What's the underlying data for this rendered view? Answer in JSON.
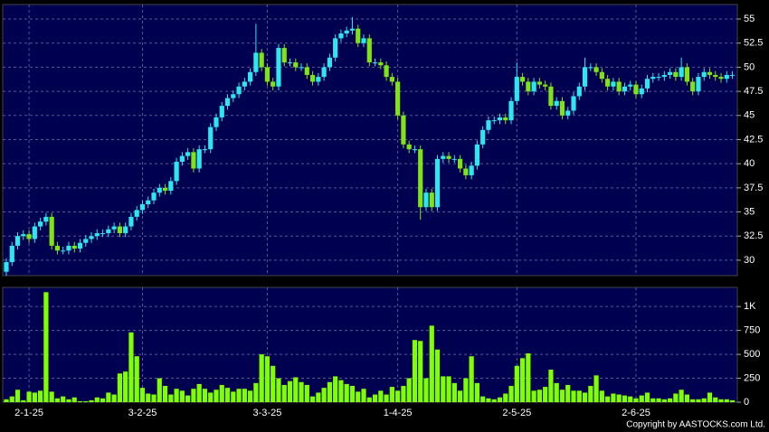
{
  "chart_data": [
    {
      "type": "candlestick",
      "up_color": "#2ee6f0",
      "down_color": "#7fe317",
      "grid": true,
      "open": [
        28.8,
        29.8,
        31.5,
        32.5,
        32.7,
        32.2,
        33.5,
        34,
        34.5,
        31.5,
        31,
        31,
        31.5,
        31.2,
        31.8,
        32.2,
        32.5,
        32.8,
        32.8,
        33.2,
        33.5,
        32.8,
        33.5,
        34.5,
        35.2,
        35.8,
        36.2,
        37,
        37.5,
        37.2,
        38.2,
        40.2,
        40.8,
        41.2,
        39.5,
        41.5,
        41.5,
        43.8,
        44.8,
        46,
        46.8,
        47.2,
        48,
        48.5,
        49.5,
        51.5,
        50,
        48.5,
        48,
        52,
        50.5,
        50.5,
        50,
        50,
        49.2,
        48.5,
        49,
        50,
        51,
        53,
        53.5,
        53.8,
        54,
        52.5,
        53,
        50.5,
        50.5,
        50.2,
        49,
        48.5,
        45,
        42,
        41.5,
        41.5,
        35.5,
        37,
        35.5,
        40.5,
        40.8,
        40.5,
        40.5,
        39.5,
        38.8,
        39.8,
        42,
        43.5,
        44.5,
        44.5,
        44.8,
        44.5,
        46.5,
        49,
        48.5,
        47.5,
        48.5,
        48.2,
        48,
        46,
        46.5,
        45,
        45.5,
        47,
        48,
        50,
        50,
        49.5,
        48.8,
        48,
        48.5,
        47.5,
        48,
        48.2,
        47.2,
        47.8,
        48.8,
        49,
        49,
        49.2,
        49.5,
        49,
        50,
        48.5,
        47.5,
        49,
        49.5,
        49.2,
        49,
        48.8,
        49.2
      ],
      "high": [
        30.2,
        31.9,
        32.9,
        33.1,
        33.1,
        33.9,
        34.4,
        34.9,
        34.9,
        31.9,
        31.4,
        31.9,
        31.9,
        32.2,
        32.6,
        32.9,
        33.2,
        33.2,
        33.6,
        33.9,
        33.9,
        33.9,
        34.9,
        35.6,
        36.2,
        36.6,
        37.4,
        37.9,
        37.9,
        38.6,
        40.6,
        41.2,
        41.6,
        41.6,
        41.9,
        41.9,
        44.2,
        45.2,
        46.4,
        47.2,
        47.6,
        48.4,
        48.9,
        49.9,
        54.5,
        51.9,
        50.4,
        48.9,
        52.4,
        52.4,
        50.9,
        50.9,
        50.4,
        50.4,
        49.6,
        49.4,
        50.4,
        51.4,
        53.4,
        53.9,
        54.2,
        55.2,
        54.4,
        53.4,
        53.4,
        50.9,
        50.9,
        50.6,
        49.4,
        48.9,
        45.4,
        42.4,
        41.9,
        41.9,
        37.4,
        37.4,
        40.9,
        41.2,
        41.2,
        40.9,
        40.9,
        39.9,
        40.2,
        42.4,
        43.9,
        44.9,
        44.9,
        45.2,
        45.2,
        46.9,
        50.5,
        49.4,
        48.9,
        48.9,
        48.9,
        48.6,
        48.4,
        46.9,
        46.9,
        45.9,
        47.4,
        48.4,
        51,
        50.4,
        50.4,
        49.9,
        49.2,
        48.9,
        48.9,
        48.4,
        48.6,
        48.6,
        48.2,
        49.2,
        49.4,
        49.4,
        49.6,
        49.9,
        49.9,
        51,
        50.4,
        48.9,
        49.4,
        49.9,
        49.9,
        49.6,
        49.4,
        49.6,
        49.6
      ],
      "low": [
        28.4,
        29.4,
        31.1,
        32.1,
        31.8,
        31.8,
        33.1,
        33.6,
        31.1,
        30.6,
        30.6,
        30.6,
        30.8,
        30.8,
        31.4,
        31.8,
        32.1,
        32.4,
        32.4,
        32.8,
        32.4,
        32.4,
        33.1,
        34.1,
        34.8,
        35.4,
        35.8,
        36.6,
        36.8,
        36.8,
        37.8,
        39.8,
        40.4,
        39.1,
        39.1,
        41.1,
        41.1,
        43.4,
        44.4,
        45.6,
        46.4,
        46.8,
        47.6,
        48.1,
        49.1,
        49.6,
        48.1,
        47.6,
        47.6,
        50.1,
        50.1,
        49.6,
        49.6,
        48.8,
        48.1,
        48.1,
        48.6,
        49.6,
        50.6,
        52.6,
        53.1,
        53.4,
        52.1,
        52.1,
        50.1,
        50.1,
        49.8,
        48.6,
        48.1,
        44.6,
        41.6,
        41.1,
        41.1,
        34.2,
        35.1,
        35.1,
        35.1,
        40.1,
        40.1,
        40.1,
        39.1,
        38.4,
        38.4,
        39.4,
        41.6,
        43.1,
        44.1,
        44.1,
        44.1,
        44.1,
        46.1,
        48.1,
        47.1,
        47.1,
        47.8,
        47.6,
        45.6,
        45.6,
        44.6,
        44.6,
        45.1,
        46.6,
        47.6,
        49.6,
        49.1,
        48.4,
        47.6,
        47.6,
        47.1,
        47.1,
        47.6,
        46.8,
        46.8,
        47.4,
        48.4,
        48.6,
        48.6,
        48.8,
        48.6,
        48.6,
        48.1,
        47.1,
        47.1,
        48.6,
        48.8,
        48.6,
        48.4,
        48.4,
        48.8
      ],
      "close": [
        29.8,
        31.5,
        32.5,
        32.7,
        32.2,
        33.5,
        34,
        34.5,
        31.5,
        31,
        31,
        31.5,
        31.2,
        31.8,
        32.2,
        32.5,
        32.8,
        32.8,
        33.2,
        33.5,
        32.8,
        33.5,
        34.5,
        35.2,
        35.8,
        36.2,
        37,
        37.5,
        37.2,
        38.2,
        40.2,
        40.8,
        41.2,
        39.5,
        41.5,
        41.5,
        43.8,
        44.8,
        46,
        46.8,
        47.2,
        48,
        48.5,
        49.5,
        51.5,
        50,
        48.5,
        48,
        52,
        50.5,
        50.5,
        50,
        50,
        49.2,
        48.5,
        49,
        50,
        51,
        53,
        53.5,
        53.8,
        54,
        52.5,
        53,
        50.5,
        50.5,
        50.2,
        49,
        48.5,
        45,
        42,
        41.5,
        41.5,
        35.5,
        37,
        35.5,
        40.5,
        40.8,
        40.5,
        40.5,
        39.5,
        38.8,
        39.8,
        42,
        43.5,
        44.5,
        44.5,
        44.8,
        44.5,
        46.5,
        49,
        48.5,
        47.5,
        48.5,
        48.2,
        48,
        46,
        46.5,
        45,
        45.5,
        47,
        48,
        50,
        50,
        49.5,
        48.8,
        48,
        48.5,
        47.5,
        48,
        48.2,
        47.2,
        47.8,
        48.8,
        49,
        49,
        49.2,
        49.5,
        49,
        50,
        48.5,
        47.5,
        49,
        49.5,
        49.2,
        49,
        48.8,
        49.2,
        49.2
      ],
      "ylim": [
        28.4,
        56.5
      ],
      "yticks": [
        30,
        32.5,
        35,
        37.5,
        40,
        42.5,
        45,
        47.5,
        50,
        52.5,
        55
      ]
    },
    {
      "type": "bar",
      "color": "#80ff00",
      "grid": true,
      "categories": [
        null,
        null,
        null,
        null,
        "2-1-25",
        null,
        null,
        null,
        null,
        null,
        null,
        null,
        null,
        null,
        null,
        null,
        null,
        null,
        null,
        null,
        null,
        null,
        null,
        null,
        "3-2-25",
        null,
        null,
        null,
        null,
        null,
        null,
        null,
        null,
        null,
        null,
        null,
        null,
        null,
        null,
        null,
        null,
        null,
        null,
        null,
        null,
        null,
        "3-3-25",
        null,
        null,
        null,
        null,
        null,
        null,
        null,
        null,
        null,
        null,
        null,
        null,
        null,
        null,
        null,
        null,
        null,
        null,
        null,
        null,
        null,
        null,
        "1-4-25",
        null,
        null,
        null,
        null,
        null,
        null,
        null,
        null,
        null,
        null,
        null,
        null,
        null,
        null,
        null,
        null,
        null,
        null,
        null,
        null,
        "2-5-25",
        null,
        null,
        null,
        null,
        null,
        null,
        null,
        null,
        null,
        null,
        null,
        null,
        null,
        null,
        null,
        null,
        null,
        null,
        null,
        null,
        "2-6-25",
        null,
        null,
        null,
        null,
        null,
        null,
        null,
        null,
        null,
        null,
        null,
        null,
        null,
        null,
        null,
        null,
        null
      ],
      "values": [
        30,
        60,
        130,
        20,
        110,
        100,
        120,
        1150,
        110,
        40,
        60,
        30,
        50,
        10,
        10,
        20,
        50,
        40,
        100,
        80,
        300,
        320,
        730,
        480,
        150,
        90,
        80,
        250,
        170,
        80,
        140,
        120,
        70,
        140,
        190,
        140,
        100,
        130,
        180,
        150,
        110,
        140,
        140,
        120,
        200,
        500,
        480,
        380,
        250,
        180,
        220,
        260,
        210,
        180,
        60,
        100,
        150,
        210,
        270,
        230,
        190,
        170,
        110,
        140,
        50,
        80,
        120,
        80,
        160,
        120,
        170,
        250,
        650,
        640,
        250,
        800,
        550,
        270,
        270,
        200,
        120,
        250,
        480,
        200,
        60,
        40,
        30,
        50,
        90,
        170,
        380,
        460,
        510,
        120,
        130,
        160,
        340,
        200,
        130,
        180,
        120,
        120,
        100,
        170,
        280,
        120,
        60,
        90,
        80,
        70,
        60,
        40,
        70,
        100,
        40,
        40,
        30,
        40,
        90,
        130,
        80,
        30,
        30,
        40,
        100,
        50,
        30,
        30,
        20
      ],
      "ylim": [
        0,
        1200
      ],
      "yticks": [
        0,
        250,
        500,
        750,
        {
          "value": 1000,
          "label": "1K"
        }
      ]
    }
  ],
  "copyright": "Copyright by AASTOCKS.com Ltd."
}
